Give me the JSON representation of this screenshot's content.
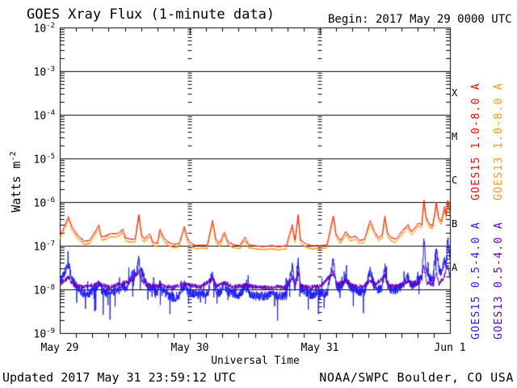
{
  "title": "GOES Xray Flux (1-minute data)",
  "begin_label": "Begin:  2017 May 29 0000 UTC",
  "footer": {
    "updated": "Updated 2017 May 31 23:59:12 UTC",
    "source": "NOAA/SWPC Boulder, CO USA"
  },
  "chart_data": {
    "type": "line",
    "title": "GOES Xray Flux (1-minute data)",
    "xlabel": "Universal Time",
    "ylabel": {
      "base": "Watts m",
      "sup": "-2"
    },
    "ylog": true,
    "ylim": [
      1e-09,
      0.01
    ],
    "y_exponents": [
      -2,
      -3,
      -4,
      -5,
      -6,
      -7,
      -8,
      -9
    ],
    "x_range_hours": [
      0,
      72
    ],
    "x_minor_tick_hours": 3,
    "x_ticks": [
      {
        "label": "May 29",
        "t": 0
      },
      {
        "label": "May 30",
        "t": 24
      },
      {
        "label": "May 31",
        "t": 48
      },
      {
        "label": "Jun 1",
        "t": 72
      }
    ],
    "grid": {
      "horizontal_decades": [
        -3,
        -4,
        -5,
        -6,
        -7,
        -8
      ],
      "interior_day_boundaries_hours": [
        24,
        48
      ]
    },
    "flare_classes": [
      {
        "label": "X",
        "y_exp": -3.5
      },
      {
        "label": "M",
        "y_exp": -4.5
      },
      {
        "label": "C",
        "y_exp": -5.5
      },
      {
        "label": "B",
        "y_exp": -6.5
      },
      {
        "label": "A",
        "y_exp": -7.5
      }
    ],
    "series": [
      {
        "name": "GOES13 1.0-8.0 A",
        "color": "#ff9800",
        "noise": 0.02,
        "offset": -0.07,
        "keypoints_from": 1,
        "label_col": 1,
        "label_row": 0
      },
      {
        "name": "GOES15 1.0-8.0 A",
        "color": "#ff0000",
        "noise": 0.012,
        "label_col": 0,
        "label_row": 0,
        "keypoints": [
          [
            0,
            -6.78
          ],
          [
            0.7,
            -6.6
          ],
          [
            1.6,
            -6.33
          ],
          [
            2.2,
            -6.55
          ],
          [
            3.2,
            -6.75
          ],
          [
            4.5,
            -6.9
          ],
          [
            5.5,
            -6.88
          ],
          [
            6.4,
            -6.7
          ],
          [
            7.2,
            -6.53
          ],
          [
            7.7,
            -6.8
          ],
          [
            8.5,
            -6.78
          ],
          [
            9.3,
            -6.72
          ],
          [
            10.2,
            -6.73
          ],
          [
            11.0,
            -6.7
          ],
          [
            11.6,
            -6.62
          ],
          [
            12.2,
            -6.82
          ],
          [
            13.0,
            -6.85
          ],
          [
            13.9,
            -6.85
          ],
          [
            14.6,
            -6.28
          ],
          [
            15.1,
            -6.75
          ],
          [
            15.6,
            -6.85
          ],
          [
            16.6,
            -6.72
          ],
          [
            17.2,
            -6.92
          ],
          [
            18.0,
            -6.95
          ],
          [
            18.5,
            -6.62
          ],
          [
            19.2,
            -6.82
          ],
          [
            20.0,
            -6.92
          ],
          [
            21.0,
            -6.97
          ],
          [
            22.0,
            -6.95
          ],
          [
            23.0,
            -6.56
          ],
          [
            23.6,
            -6.85
          ],
          [
            24.3,
            -6.95
          ],
          [
            25.2,
            -7.0
          ],
          [
            26.3,
            -6.98
          ],
          [
            27.2,
            -7.0
          ],
          [
            28.2,
            -6.42
          ],
          [
            28.8,
            -6.85
          ],
          [
            29.5,
            -6.95
          ],
          [
            30.4,
            -6.68
          ],
          [
            31.0,
            -6.9
          ],
          [
            32.0,
            -6.97
          ],
          [
            33.2,
            -7.0
          ],
          [
            34.2,
            -6.8
          ],
          [
            34.8,
            -6.97
          ],
          [
            36.0,
            -7.0
          ],
          [
            37.5,
            -7.02
          ],
          [
            39.0,
            -7.0
          ],
          [
            40.5,
            -7.02
          ],
          [
            41.8,
            -7.0
          ],
          [
            42.9,
            -6.52
          ],
          [
            43.4,
            -6.88
          ],
          [
            44.0,
            -6.28
          ],
          [
            44.4,
            -6.85
          ],
          [
            45.2,
            -6.95
          ],
          [
            46.5,
            -7.0
          ],
          [
            48.0,
            -7.0
          ],
          [
            49.3,
            -6.98
          ],
          [
            50.5,
            -6.3
          ],
          [
            51.0,
            -6.75
          ],
          [
            51.8,
            -6.88
          ],
          [
            52.8,
            -6.68
          ],
          [
            53.6,
            -6.82
          ],
          [
            54.5,
            -6.78
          ],
          [
            55.3,
            -6.88
          ],
          [
            56.2,
            -6.85
          ],
          [
            57.3,
            -6.42
          ],
          [
            58.0,
            -6.65
          ],
          [
            58.8,
            -6.82
          ],
          [
            59.5,
            -6.75
          ],
          [
            60.0,
            -6.32
          ],
          [
            60.5,
            -6.72
          ],
          [
            61.2,
            -6.82
          ],
          [
            62.0,
            -6.85
          ],
          [
            62.8,
            -6.72
          ],
          [
            63.5,
            -6.62
          ],
          [
            64.3,
            -6.52
          ],
          [
            64.8,
            -6.68
          ],
          [
            65.5,
            -6.6
          ],
          [
            66.2,
            -6.48
          ],
          [
            66.8,
            -6.52
          ],
          [
            67.2,
            -5.95
          ],
          [
            67.6,
            -6.35
          ],
          [
            68.2,
            -6.5
          ],
          [
            68.8,
            -6.55
          ],
          [
            69.5,
            -6.0
          ],
          [
            69.9,
            -6.35
          ],
          [
            70.4,
            -6.45
          ],
          [
            71.0,
            -6.1
          ],
          [
            71.3,
            -6.3
          ],
          [
            71.6,
            -5.94
          ],
          [
            71.8,
            -6.1
          ],
          [
            72,
            -6.2
          ]
        ]
      },
      {
        "name": "GOES15 0.5-4.0 A",
        "color": "#1a1aff",
        "noise": 0.11,
        "down_spikes": true,
        "up_spikes": true,
        "label_col": 0,
        "label_row": 1,
        "keypoints": [
          [
            0,
            -7.8
          ],
          [
            0.8,
            -7.65
          ],
          [
            1.6,
            -7.42
          ],
          [
            2.3,
            -7.8
          ],
          [
            3.2,
            -7.95
          ],
          [
            4.5,
            -8.1
          ],
          [
            5.5,
            -8.1
          ],
          [
            6.4,
            -8.0
          ],
          [
            7.2,
            -7.85
          ],
          [
            7.8,
            -8.05
          ],
          [
            9.0,
            -8.1
          ],
          [
            10.0,
            -8.05
          ],
          [
            11.0,
            -8.0
          ],
          [
            11.6,
            -7.9
          ],
          [
            12.3,
            -8.0
          ],
          [
            12.9,
            -7.75
          ],
          [
            13.6,
            -7.62
          ],
          [
            14.2,
            -7.6
          ],
          [
            14.6,
            -7.28
          ],
          [
            15.0,
            -7.6
          ],
          [
            15.5,
            -7.68
          ],
          [
            16.1,
            -7.9
          ],
          [
            17.0,
            -8.0
          ],
          [
            18.0,
            -8.05
          ],
          [
            18.5,
            -7.88
          ],
          [
            19.3,
            -8.05
          ],
          [
            20.2,
            -8.15
          ],
          [
            21.2,
            -8.2
          ],
          [
            22.2,
            -8.1
          ],
          [
            23.0,
            -7.88
          ],
          [
            23.6,
            -8.05
          ],
          [
            24.5,
            -8.1
          ],
          [
            25.5,
            -8.12
          ],
          [
            26.5,
            -8.1
          ],
          [
            27.3,
            -8.1
          ],
          [
            28.2,
            -7.58
          ],
          [
            28.7,
            -8.0
          ],
          [
            29.5,
            -8.08
          ],
          [
            30.4,
            -7.88
          ],
          [
            31.0,
            -8.05
          ],
          [
            32.0,
            -8.1
          ],
          [
            33.0,
            -8.12
          ],
          [
            34.2,
            -7.95
          ],
          [
            35.0,
            -8.1
          ],
          [
            36.2,
            -8.15
          ],
          [
            37.5,
            -8.15
          ],
          [
            39.0,
            -8.12
          ],
          [
            40.5,
            -8.15
          ],
          [
            41.8,
            -8.15
          ],
          [
            42.9,
            -7.42
          ],
          [
            43.4,
            -8.0
          ],
          [
            44.0,
            -7.32
          ],
          [
            44.4,
            -7.95
          ],
          [
            45.2,
            -8.05
          ],
          [
            46.5,
            -8.12
          ],
          [
            48.0,
            -8.05
          ],
          [
            49.3,
            -8.1
          ],
          [
            50.5,
            -7.3
          ],
          [
            51.0,
            -7.9
          ],
          [
            51.8,
            -8.0
          ],
          [
            52.8,
            -7.72
          ],
          [
            53.6,
            -7.95
          ],
          [
            54.5,
            -8.0
          ],
          [
            55.3,
            -8.05
          ],
          [
            56.2,
            -8.05
          ],
          [
            57.3,
            -7.58
          ],
          [
            58.0,
            -7.9
          ],
          [
            58.8,
            -8.0
          ],
          [
            59.5,
            -7.95
          ],
          [
            60.0,
            -7.48
          ],
          [
            60.5,
            -7.9
          ],
          [
            61.2,
            -8.0
          ],
          [
            62.0,
            -8.02
          ],
          [
            62.8,
            -7.95
          ],
          [
            63.5,
            -7.85
          ],
          [
            64.3,
            -7.72
          ],
          [
            64.8,
            -7.9
          ],
          [
            65.5,
            -7.85
          ],
          [
            66.2,
            -7.75
          ],
          [
            66.8,
            -7.8
          ],
          [
            67.2,
            -6.85
          ],
          [
            67.6,
            -7.5
          ],
          [
            68.2,
            -7.72
          ],
          [
            68.8,
            -7.78
          ],
          [
            69.5,
            -7.05
          ],
          [
            69.9,
            -7.5
          ],
          [
            70.4,
            -7.65
          ],
          [
            71.0,
            -7.3
          ],
          [
            71.3,
            -7.5
          ],
          [
            71.6,
            -6.82
          ],
          [
            71.8,
            -7.1
          ],
          [
            72,
            -7.25
          ]
        ]
      },
      {
        "name": "GOES13 0.5-4.0 A",
        "color": "#6400bb",
        "noise": 0.055,
        "label_col": 1,
        "label_row": 1,
        "keypoints": [
          [
            0,
            -7.88
          ],
          [
            1.6,
            -7.72
          ],
          [
            2.5,
            -7.9
          ],
          [
            4,
            -7.95
          ],
          [
            7.2,
            -7.88
          ],
          [
            9,
            -7.95
          ],
          [
            12.9,
            -7.82
          ],
          [
            13.8,
            -7.75
          ],
          [
            14.6,
            -7.58
          ],
          [
            15.2,
            -7.8
          ],
          [
            16,
            -7.9
          ],
          [
            18.5,
            -7.92
          ],
          [
            21,
            -7.95
          ],
          [
            23,
            -7.88
          ],
          [
            26,
            -7.95
          ],
          [
            28.2,
            -7.75
          ],
          [
            29,
            -7.93
          ],
          [
            30.4,
            -7.85
          ],
          [
            32,
            -7.95
          ],
          [
            34.2,
            -7.9
          ],
          [
            36,
            -7.95
          ],
          [
            39,
            -7.95
          ],
          [
            42,
            -7.95
          ],
          [
            42.9,
            -7.7
          ],
          [
            43.4,
            -7.93
          ],
          [
            44,
            -7.62
          ],
          [
            44.5,
            -7.92
          ],
          [
            46,
            -7.95
          ],
          [
            48,
            -7.93
          ],
          [
            50.5,
            -7.62
          ],
          [
            51.1,
            -7.9
          ],
          [
            52.8,
            -7.8
          ],
          [
            54,
            -7.93
          ],
          [
            56,
            -7.94
          ],
          [
            57.3,
            -7.78
          ],
          [
            58,
            -7.92
          ],
          [
            60,
            -7.68
          ],
          [
            60.6,
            -7.92
          ],
          [
            62,
            -7.93
          ],
          [
            63.5,
            -7.88
          ],
          [
            64.3,
            -7.8
          ],
          [
            65.5,
            -7.9
          ],
          [
            66.5,
            -7.82
          ],
          [
            67.2,
            -7.45
          ],
          [
            67.7,
            -7.85
          ],
          [
            68.8,
            -7.88
          ],
          [
            69.5,
            -7.6
          ],
          [
            70,
            -7.88
          ],
          [
            71,
            -7.7
          ],
          [
            71.6,
            -7.45
          ],
          [
            72,
            -7.7
          ]
        ]
      }
    ]
  }
}
